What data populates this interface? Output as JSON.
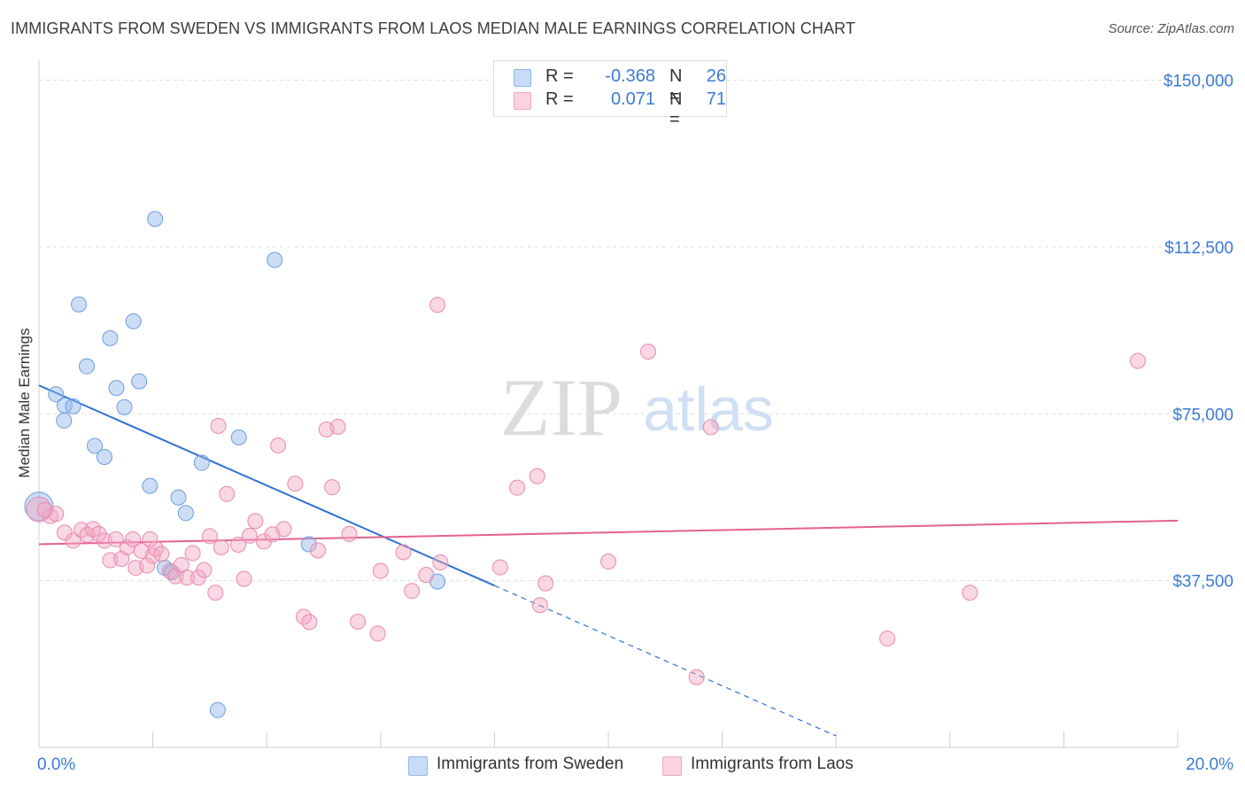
{
  "title": "IMMIGRANTS FROM SWEDEN VS IMMIGRANTS FROM LAOS MEDIAN MALE EARNINGS CORRELATION CHART",
  "source": "Source: ZipAtlas.com",
  "watermark": {
    "zip": "ZIP",
    "atlas": "atlas"
  },
  "legend": {
    "r_label": "R =",
    "n_label": "N =",
    "rows": [
      {
        "r": "-0.368",
        "n": "26",
        "color": "#8fb6ea"
      },
      {
        "r": "0.071",
        "n": "71",
        "color": "#f2a7c1"
      }
    ]
  },
  "chart_data": {
    "type": "scatter",
    "title": "IMMIGRANTS FROM SWEDEN VS IMMIGRANTS FROM LAOS MEDIAN MALE EARNINGS CORRELATION CHART",
    "xlabel": "",
    "ylabel": "Median Male Earnings",
    "xlim": [
      0,
      20
    ],
    "ylim": [
      0,
      152500
    ],
    "x_tick_labels": [
      "0.0%",
      "20.0%"
    ],
    "y_ticks": [
      37500,
      75000,
      112500,
      150000
    ],
    "y_tick_labels": [
      "$37,500",
      "$75,000",
      "$112,500",
      "$150,000"
    ],
    "grid": true,
    "legend_position": "bottom",
    "series": [
      {
        "name": "Immigrants from Sweden",
        "color": "#8fb6ea",
        "stroke": "#6b9de0",
        "line_color": "#2f72d2",
        "points": [
          [
            2.04,
            118800
          ],
          [
            4.14,
            109600
          ],
          [
            0.7,
            99600
          ],
          [
            1.66,
            95800
          ],
          [
            1.25,
            92000
          ],
          [
            0.84,
            85700
          ],
          [
            1.36,
            80800
          ],
          [
            1.76,
            82300
          ],
          [
            0.3,
            79400
          ],
          [
            0.45,
            76900
          ],
          [
            0.6,
            76700
          ],
          [
            1.5,
            76500
          ],
          [
            0.44,
            73500
          ],
          [
            0.98,
            67800
          ],
          [
            1.15,
            65300
          ],
          [
            3.51,
            69700
          ],
          [
            2.86,
            64000
          ],
          [
            1.95,
            58800
          ],
          [
            2.45,
            56200
          ],
          [
            2.58,
            52700
          ],
          [
            0.0,
            54200
          ],
          [
            4.74,
            45700
          ],
          [
            2.21,
            40400
          ],
          [
            2.33,
            39400
          ],
          [
            7.0,
            37300
          ],
          [
            3.14,
            8400
          ]
        ],
        "trend": {
          "x0": 0,
          "y0": 81400,
          "x1": 8.0,
          "y1": 36400,
          "dash_to_x": 14.0,
          "dash_to_y": 2600
        }
      },
      {
        "name": "Immigrants from Laos",
        "color": "#f2a7c1",
        "stroke": "#e88aae",
        "line_color": "#e5618f",
        "points": [
          [
            0.0,
            53500
          ],
          [
            0.2,
            52000
          ],
          [
            0.3,
            52500
          ],
          [
            0.45,
            48300
          ],
          [
            0.6,
            46500
          ],
          [
            0.75,
            48900
          ],
          [
            0.85,
            47800
          ],
          [
            0.95,
            49100
          ],
          [
            1.05,
            48000
          ],
          [
            1.15,
            46500
          ],
          [
            1.25,
            42100
          ],
          [
            1.35,
            46800
          ],
          [
            1.45,
            42400
          ],
          [
            1.55,
            45000
          ],
          [
            1.65,
            46800
          ],
          [
            1.7,
            40400
          ],
          [
            1.8,
            44200
          ],
          [
            1.9,
            40900
          ],
          [
            2.0,
            43100
          ],
          [
            2.05,
            44700
          ],
          [
            2.15,
            43500
          ],
          [
            2.3,
            39700
          ],
          [
            2.4,
            38500
          ],
          [
            2.5,
            41000
          ],
          [
            2.6,
            38200
          ],
          [
            2.7,
            43700
          ],
          [
            2.8,
            38200
          ],
          [
            2.9,
            39900
          ],
          [
            3.0,
            47500
          ],
          [
            3.1,
            34800
          ],
          [
            3.2,
            45000
          ],
          [
            3.3,
            57000
          ],
          [
            3.5,
            45600
          ],
          [
            3.6,
            37900
          ],
          [
            3.7,
            47600
          ],
          [
            3.8,
            50900
          ],
          [
            3.95,
            46300
          ],
          [
            4.1,
            47900
          ],
          [
            4.2,
            67900
          ],
          [
            4.3,
            49100
          ],
          [
            4.5,
            59300
          ],
          [
            4.65,
            29400
          ],
          [
            4.75,
            28200
          ],
          [
            4.9,
            44300
          ],
          [
            5.05,
            71500
          ],
          [
            5.15,
            58500
          ],
          [
            5.25,
            72100
          ],
          [
            5.45,
            48000
          ],
          [
            5.6,
            28300
          ],
          [
            5.95,
            25600
          ],
          [
            6.0,
            39700
          ],
          [
            6.4,
            43900
          ],
          [
            6.55,
            35200
          ],
          [
            6.8,
            38800
          ],
          [
            7.05,
            41600
          ],
          [
            7.0,
            99500
          ],
          [
            8.1,
            40500
          ],
          [
            8.4,
            58400
          ],
          [
            8.75,
            61000
          ],
          [
            8.8,
            32000
          ],
          [
            8.9,
            36900
          ],
          [
            10.0,
            41800
          ],
          [
            10.7,
            89000
          ],
          [
            11.55,
            15800
          ],
          [
            11.8,
            72000
          ],
          [
            14.9,
            24500
          ],
          [
            16.35,
            34800
          ],
          [
            19.3,
            86900
          ],
          [
            3.15,
            72300
          ],
          [
            1.95,
            46800
          ],
          [
            0.1,
            53400
          ]
        ],
        "trend": {
          "x0": 0,
          "y0": 45700,
          "x1": 20,
          "y1": 51000
        }
      }
    ]
  }
}
